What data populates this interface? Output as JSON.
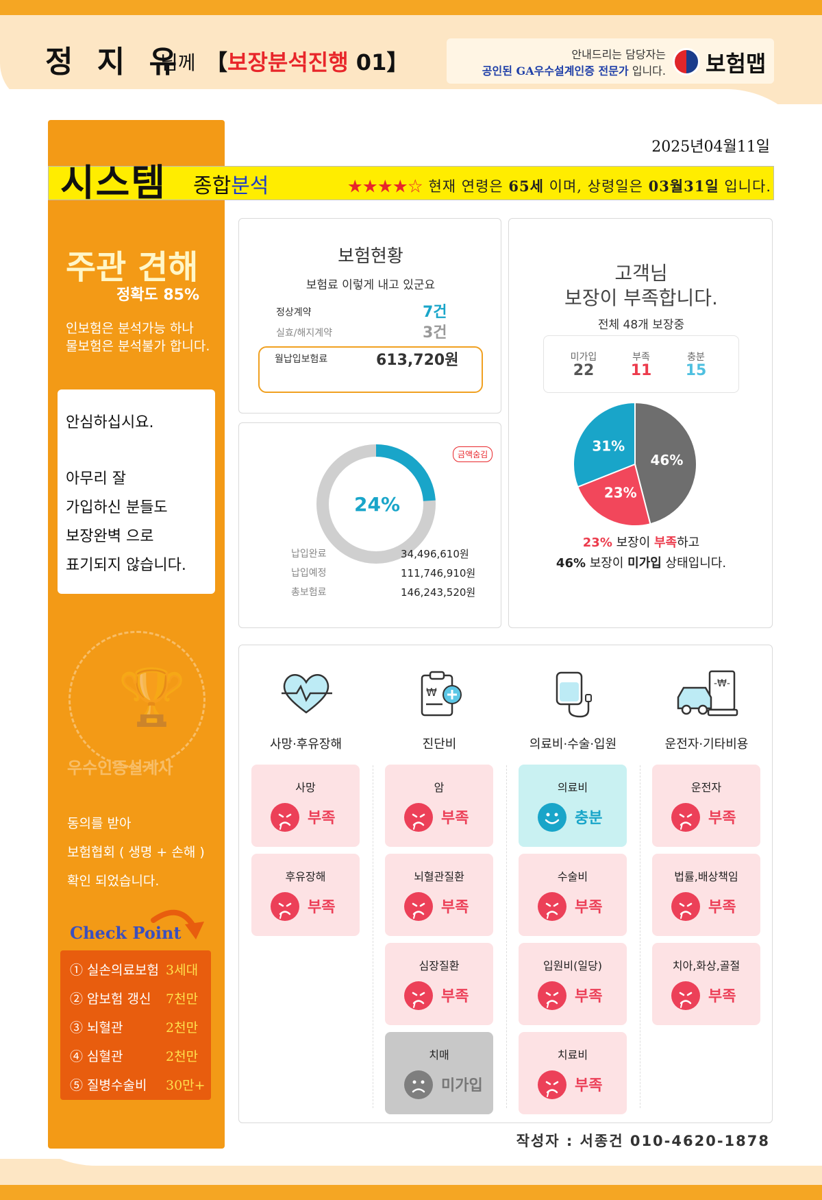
{
  "header": {
    "name": "정 지 유",
    "honorific": "님께",
    "bracket_open": "【",
    "bracket_red": "보장분석진행",
    "bracket_num": " 01",
    "bracket_close": "】",
    "guide_line1": "안내드리는 담당자는",
    "guide_line2_blue": "공인된 GA우수설계인증 전문가",
    "guide_line2_rest": " 입니다.",
    "logo_text": "보험맵"
  },
  "date": "2025년04월11일",
  "system": {
    "title": "시스템",
    "sub_black": "종합",
    "sub_blue": "분석",
    "stars": "★★★★☆",
    "age_text_1": " 현재 연령은 ",
    "age": "65세",
    "age_text_2": " 이며, 상령일은 ",
    "birthday": "03월31일",
    "age_text_3": " 입니다."
  },
  "sidebar": {
    "heading": "주관 견해",
    "accuracy": "정확도 85%",
    "note1": "인보험은 분석가능 하나",
    "note2": "물보험은 분석불가 합니다.",
    "box_lines": [
      "안심하십시요.",
      "아무리 잘",
      "가입하신 분들도",
      "보장완벽 으로",
      "표기되지 않습니다."
    ],
    "cert_text": "우수인증설계사",
    "agree_lines": [
      "동의를 받아",
      "보험협회 ( 생명 + 손해 )",
      "확인 되었습니다."
    ],
    "checkpoint_title": "Check Point",
    "checkpoints": [
      {
        "label": "① 실손의료보험",
        "value": "3세대"
      },
      {
        "label": "② 암보험 갱신",
        "value": "7천만"
      },
      {
        "label": "③ 뇌혈관",
        "value": "2천만"
      },
      {
        "label": "④ 심혈관",
        "value": "2천만"
      },
      {
        "label": "⑤ 질병수술비",
        "value": "30만+"
      }
    ]
  },
  "insurance_status": {
    "title": "보험현황",
    "subtitle": "보험료 이렇게 내고 있군요",
    "normal_label": "정상계약",
    "normal_value": "7건",
    "lapsed_label": "실효/해지계약",
    "lapsed_value": "3건",
    "monthly_label": "월납입보험료",
    "monthly_value": "613,720원"
  },
  "payment": {
    "badge": "금액숨김",
    "percent_label": "24%",
    "percent": 24,
    "paid_label": "납입완료",
    "paid_value": "34,496,610원",
    "due_label": "납입예정",
    "due_value": "111,746,910원",
    "total_label": "총보험료",
    "total_value": "146,243,520원"
  },
  "coverage": {
    "title1": "고객님",
    "title2": "보장이 부족합니다.",
    "total_text": "전체 48개 보장중",
    "stats": [
      {
        "label": "미가입",
        "value": "22",
        "color": "#555555"
      },
      {
        "label": "부족",
        "value": "11",
        "color": "#ec3b4c"
      },
      {
        "label": "충분",
        "value": "15",
        "color": "#4fc0e0"
      }
    ],
    "cap1_pct": "23%",
    "cap1_mid": " 보장이 ",
    "cap1_red": "부족",
    "cap1_end": "하고",
    "cap2_pct": "46%",
    "cap2_mid": " 보장이 ",
    "cap2_bold": "미가입",
    "cap2_end": " 상태입니다."
  },
  "chart_data": {
    "type": "pie",
    "categories": [
      "미가입",
      "부족",
      "충분"
    ],
    "values": [
      46,
      23,
      31
    ],
    "labels": [
      "46%",
      "23%",
      "31%"
    ],
    "colors": [
      "#6e6e6e",
      "#f2475b",
      "#19a5c9"
    ]
  },
  "categories": [
    {
      "title": "사망·후유장해",
      "items": [
        {
          "name": "사망",
          "status": "부족",
          "kind": "lack"
        },
        {
          "name": "후유장해",
          "status": "부족",
          "kind": "lack"
        }
      ]
    },
    {
      "title": "진단비",
      "items": [
        {
          "name": "암",
          "status": "부족",
          "kind": "lack"
        },
        {
          "name": "뇌혈관질환",
          "status": "부족",
          "kind": "lack"
        },
        {
          "name": "심장질환",
          "status": "부족",
          "kind": "lack"
        },
        {
          "name": "치매",
          "status": "미가입",
          "kind": "none"
        }
      ]
    },
    {
      "title": "의료비·수술·입원",
      "items": [
        {
          "name": "의료비",
          "status": "충분",
          "kind": "ok"
        },
        {
          "name": "수술비",
          "status": "부족",
          "kind": "lack"
        },
        {
          "name": "입원비(일당)",
          "status": "부족",
          "kind": "lack"
        },
        {
          "name": "치료비",
          "status": "부족",
          "kind": "lack"
        }
      ]
    },
    {
      "title": "운전자·기타비용",
      "items": [
        {
          "name": "운전자",
          "status": "부족",
          "kind": "lack"
        },
        {
          "name": "법률,배상책임",
          "status": "부족",
          "kind": "lack"
        },
        {
          "name": "치아,화상,골절",
          "status": "부족",
          "kind": "lack"
        }
      ]
    }
  ],
  "author": "작성자 : 서종건 010-4620-1878"
}
